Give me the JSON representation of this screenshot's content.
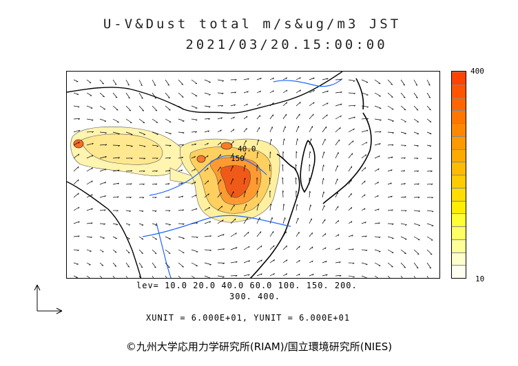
{
  "header": {
    "title_line1": "U-V&Dust total m/s&ug/m3 JST",
    "title_line2": "2021/03/20.15:00:00"
  },
  "colorbar": {
    "max_label": "400",
    "min_label": "10",
    "colors": [
      "#fffff0",
      "#ffffcc",
      "#ffff99",
      "#ffff66",
      "#ffff33",
      "#ffee00",
      "#ffdd00",
      "#ffcc00",
      "#ffbb00",
      "#ffaa00",
      "#ff9900",
      "#ff8800",
      "#ff7700",
      "#ff6600",
      "#ff5500",
      "#ff4400"
    ]
  },
  "map": {
    "dust_colors": {
      "low": "#fff8c0",
      "mid": "#ffe070",
      "high": "#ffb040",
      "peak": "#f06020",
      "core": "#e03010"
    },
    "contour_labels": [
      "40.0",
      "150"
    ],
    "river_color": "#1e64ff"
  },
  "legend": {
    "levels_line1": "lev=  10.0  20.0  40.0  60.0  100.  150.  200.",
    "levels_line2": "300.  400.",
    "unit_line": "XUNIT = 6.000E+01,  YUNIT = 6.000E+01"
  },
  "footer": {
    "credit": "©九州大学応用力学研究所(RIAM)/国立環境研究所(NIES)"
  }
}
